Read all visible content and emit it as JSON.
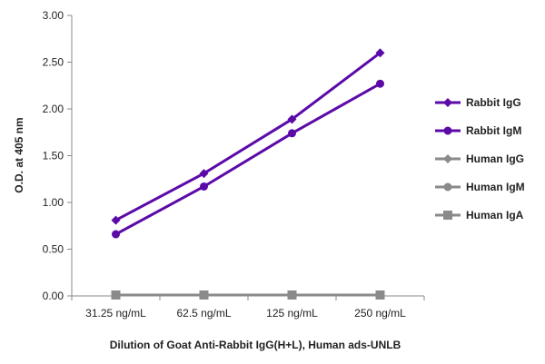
{
  "chart_data": {
    "type": "line",
    "title": "",
    "xlabel": "Dilution of Goat Anti-Rabbit IgG(H+L), Human ads-UNLB",
    "ylabel": "O.D. at 405 nm",
    "categories": [
      "31.25 ng/mL",
      "62.5 ng/mL",
      "125 ng/mL",
      "250 ng/mL"
    ],
    "ylim": [
      0,
      3.0
    ],
    "yticks": [
      "0.00",
      "0.50",
      "1.00",
      "1.50",
      "2.00",
      "2.50",
      "3.00"
    ],
    "grid": false,
    "legend_position": "right",
    "series": [
      {
        "name": "Rabbit IgG",
        "color": "#5b0aa8",
        "marker": "diamond",
        "values": [
          0.81,
          1.31,
          1.89,
          2.6
        ]
      },
      {
        "name": "Rabbit IgM",
        "color": "#5b0aa8",
        "marker": "circle",
        "values": [
          0.66,
          1.17,
          1.74,
          2.27
        ]
      },
      {
        "name": "Human IgG",
        "color": "#8a8a8a",
        "marker": "diamond",
        "values": [
          0.01,
          0.01,
          0.01,
          0.01
        ]
      },
      {
        "name": "Human IgM",
        "color": "#8a8a8a",
        "marker": "circle",
        "values": [
          0.01,
          0.01,
          0.01,
          0.01
        ]
      },
      {
        "name": "Human IgA",
        "color": "#8a8a8a",
        "marker": "square",
        "values": [
          0.01,
          0.01,
          0.01,
          0.01
        ]
      }
    ]
  }
}
